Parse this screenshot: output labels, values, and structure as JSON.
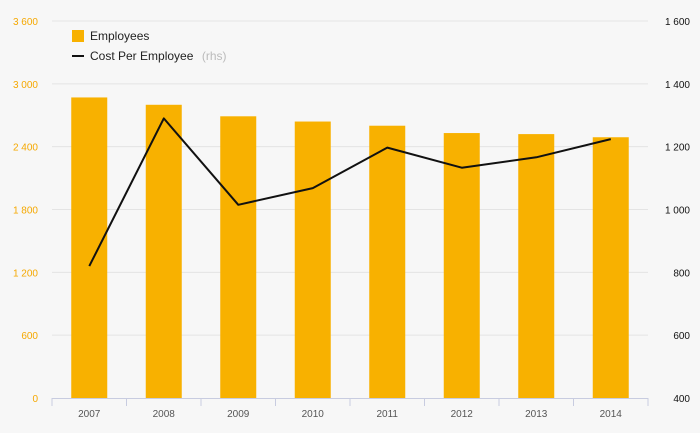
{
  "chart_data": {
    "type": "bar",
    "categories": [
      "2007",
      "2008",
      "2009",
      "2010",
      "2011",
      "2012",
      "2013",
      "2014"
    ],
    "series": [
      {
        "name": "Employees",
        "type": "bar",
        "axis": "left",
        "color": "#f8b100",
        "values": [
          2870,
          2800,
          2690,
          2640,
          2600,
          2530,
          2520,
          2490
        ]
      },
      {
        "name": "Cost Per Employee",
        "legend_suffix": "(rhs)",
        "type": "line",
        "axis": "right",
        "color": "#111111",
        "values": [
          820,
          1290,
          1015,
          1068,
          1197,
          1133,
          1166,
          1224
        ]
      }
    ],
    "y_left": {
      "ylim": [
        0,
        3600
      ],
      "ticks": [
        "0",
        "600",
        "1 200",
        "1 800",
        "2 400",
        "3 000",
        "3 600"
      ],
      "tick_values": [
        0,
        600,
        1200,
        1800,
        2400,
        3000,
        3600
      ]
    },
    "y_right": {
      "ylim": [
        400,
        1600
      ],
      "ticks": [
        "400",
        "600",
        "800",
        "1 000",
        "1 200",
        "1 400",
        "1 600"
      ],
      "tick_values": [
        400,
        600,
        800,
        1000,
        1200,
        1400,
        1600
      ]
    },
    "grid": true,
    "legend_position": "top-left"
  }
}
